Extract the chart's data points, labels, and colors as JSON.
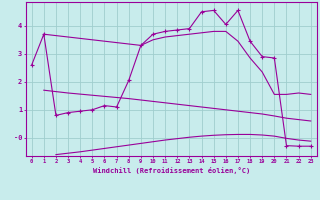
{
  "background_color": "#c8ecec",
  "grid_color": "#a0cece",
  "line_color": "#990099",
  "xlabel": "Windchill (Refroidissement éolien,°C)",
  "x_ticks": [
    0,
    1,
    2,
    3,
    4,
    5,
    6,
    7,
    8,
    9,
    10,
    11,
    12,
    13,
    14,
    15,
    16,
    17,
    18,
    19,
    20,
    21,
    22,
    23
  ],
  "y_ticks": [
    0,
    1,
    2,
    3,
    4
  ],
  "y_tick_labels": [
    "-0",
    "1",
    "2",
    "3",
    "4"
  ],
  "ylim": [
    -0.65,
    4.85
  ],
  "xlim": [
    -0.5,
    23.5
  ],
  "curve_x": [
    0,
    1,
    2,
    3,
    4,
    5,
    6,
    7,
    8,
    9,
    10,
    11,
    12,
    13,
    14,
    15,
    16,
    17,
    18,
    19,
    20,
    21,
    22,
    23
  ],
  "curve_y": [
    2.6,
    3.7,
    0.8,
    0.9,
    0.95,
    1.0,
    1.15,
    1.1,
    2.05,
    3.3,
    3.7,
    3.8,
    3.85,
    3.9,
    4.5,
    4.55,
    4.05,
    4.55,
    3.45,
    2.9,
    2.85,
    -0.28,
    -0.3,
    -0.3
  ],
  "line1_x": [
    1,
    2,
    3,
    4,
    5,
    6,
    7,
    8,
    9,
    10,
    11,
    12,
    13,
    14,
    15,
    16,
    17,
    18,
    19,
    20,
    21,
    22,
    23
  ],
  "line1_y": [
    3.7,
    3.65,
    3.6,
    3.55,
    3.5,
    3.45,
    3.4,
    3.35,
    3.3,
    3.5,
    3.6,
    3.65,
    3.7,
    3.75,
    3.8,
    3.8,
    3.45,
    2.85,
    2.35,
    1.55,
    1.55,
    1.6,
    1.55
  ],
  "line2_x": [
    1,
    2,
    3,
    4,
    5,
    6,
    7,
    8,
    9,
    10,
    11,
    12,
    13,
    14,
    15,
    16,
    17,
    18,
    19,
    20,
    21,
    22,
    23
  ],
  "line2_y": [
    1.7,
    1.65,
    1.6,
    1.56,
    1.52,
    1.48,
    1.44,
    1.4,
    1.35,
    1.3,
    1.25,
    1.2,
    1.15,
    1.1,
    1.05,
    1.0,
    0.95,
    0.9,
    0.85,
    0.78,
    0.7,
    0.65,
    0.6
  ],
  "line3_x": [
    2,
    3,
    4,
    5,
    6,
    7,
    8,
    9,
    10,
    11,
    12,
    13,
    14,
    15,
    16,
    17,
    18,
    19,
    20,
    21,
    22,
    23
  ],
  "line3_y": [
    -0.6,
    -0.55,
    -0.5,
    -0.44,
    -0.38,
    -0.32,
    -0.26,
    -0.2,
    -0.14,
    -0.08,
    -0.03,
    0.02,
    0.06,
    0.09,
    0.11,
    0.12,
    0.12,
    0.1,
    0.06,
    -0.02,
    -0.08,
    -0.12
  ]
}
